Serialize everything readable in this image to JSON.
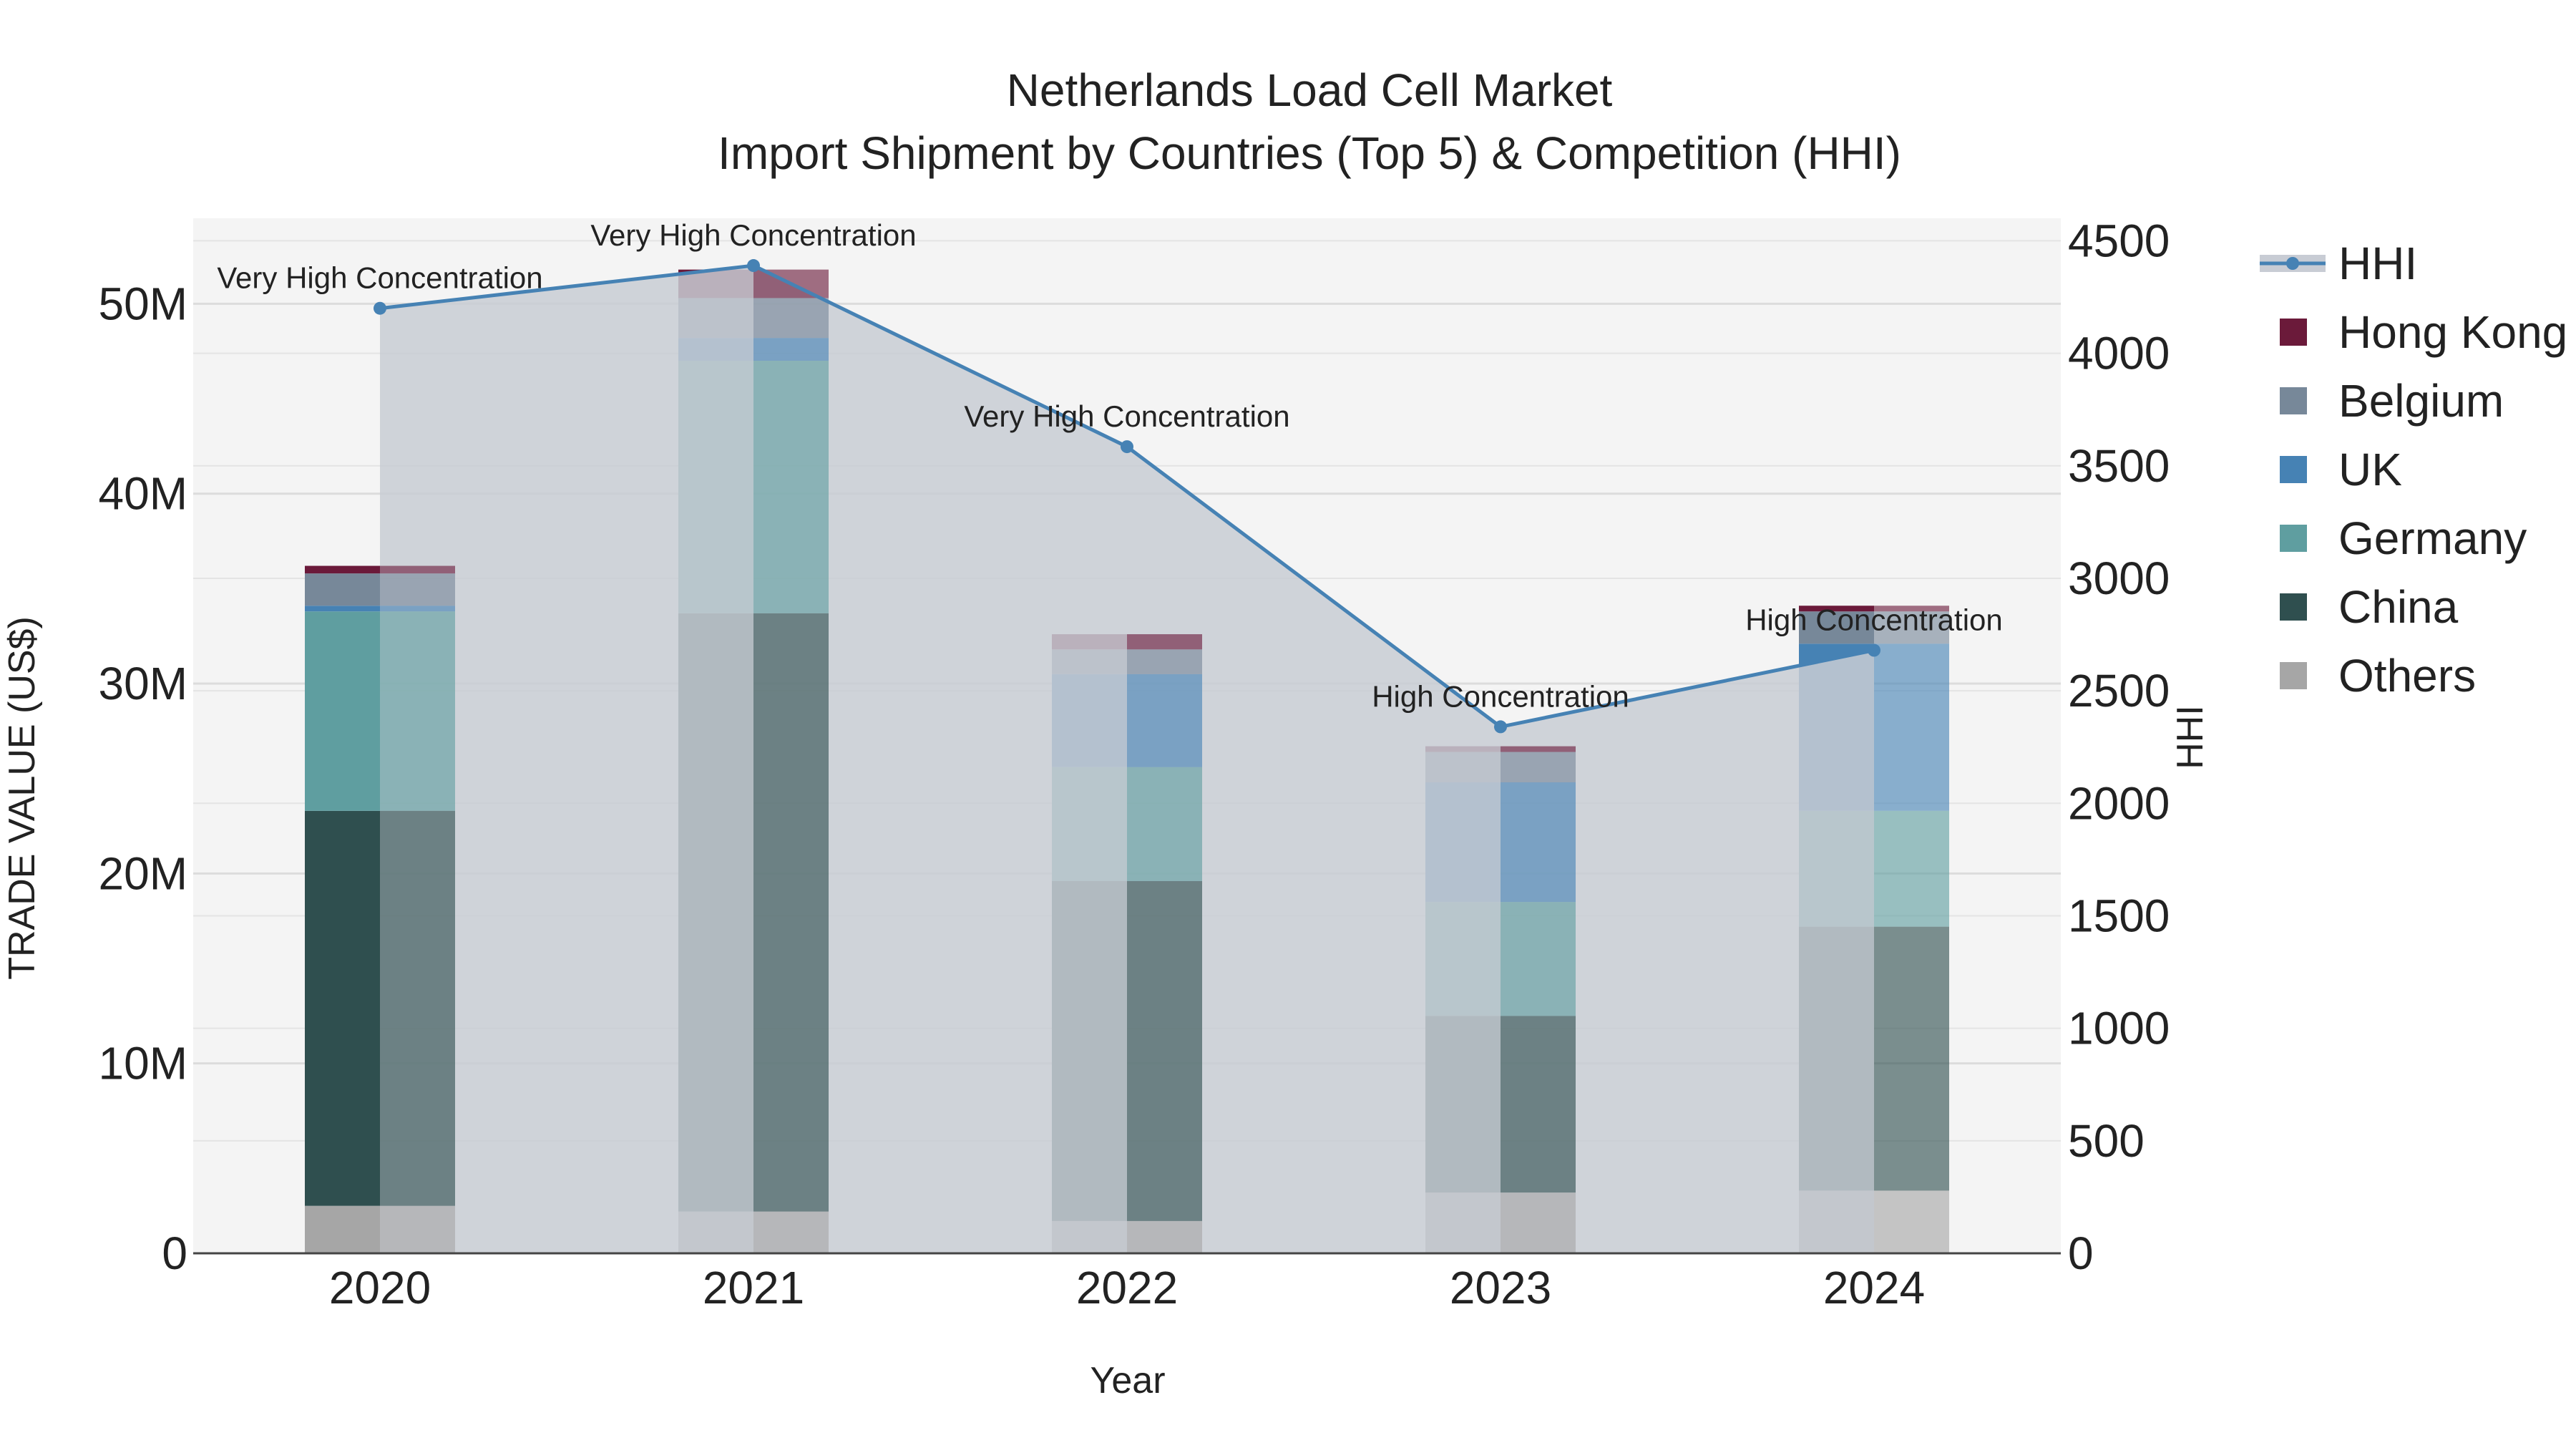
{
  "chart_data": {
    "type": "bar",
    "title": "Netherlands Load Cell Market",
    "subtitle": "Import Shipment by Countries (Top 5) & Competition (HHI)",
    "xlabel": "Year",
    "ylabel": "TRADE VALUE (US$)",
    "y2label": "HHI",
    "categories": [
      "2020",
      "2021",
      "2022",
      "2023",
      "2024"
    ],
    "ylim": [
      0,
      54500000
    ],
    "y_ticks": [
      0,
      10000000,
      20000000,
      30000000,
      40000000,
      50000000
    ],
    "y_tick_labels": [
      "0",
      "10M",
      "20M",
      "30M",
      "40M",
      "50M"
    ],
    "y2lim": [
      0,
      4600
    ],
    "y2_ticks": [
      0,
      500,
      1000,
      1500,
      2000,
      2500,
      3000,
      3500,
      4000,
      4500
    ],
    "y2_tick_labels": [
      "0",
      "500",
      "1000",
      "1500",
      "2000",
      "2500",
      "3000",
      "3500",
      "4000",
      "4500"
    ],
    "series": [
      {
        "name": "Others",
        "color": "#a6a6a6",
        "values": [
          2500000,
          2200000,
          1700000,
          3200000,
          3300000
        ]
      },
      {
        "name": "China",
        "color": "#2f4f4f",
        "values": [
          20800000,
          31500000,
          17900000,
          9300000,
          13900000
        ]
      },
      {
        "name": "Germany",
        "color": "#5f9ea0",
        "values": [
          10500000,
          13300000,
          6000000,
          6000000,
          6100000
        ]
      },
      {
        "name": "UK",
        "color": "#4682b4",
        "values": [
          300000,
          1200000,
          4900000,
          6300000,
          8800000
        ]
      },
      {
        "name": "Belgium",
        "color": "#778899",
        "values": [
          1700000,
          2100000,
          1300000,
          1600000,
          1700000
        ]
      },
      {
        "name": "Hong Kong",
        "color": "#6b1a3a",
        "values": [
          400000,
          1500000,
          800000,
          300000,
          300000
        ]
      }
    ],
    "hhi": {
      "name": "HHI",
      "color": "#4682b4",
      "values": [
        4200,
        4390,
        3585,
        2340,
        2680
      ],
      "annotations": [
        "Very High Concentration",
        "Very High Concentration",
        "Very High Concentration",
        "High Concentration",
        "High Concentration"
      ]
    },
    "legend_order": [
      "HHI",
      "Hong Kong",
      "Belgium",
      "UK",
      "Germany",
      "China",
      "Others"
    ],
    "plot_background": "#f4f4f4",
    "area_fill": "#c8ccd4",
    "grid": true,
    "legend_position": "right"
  }
}
